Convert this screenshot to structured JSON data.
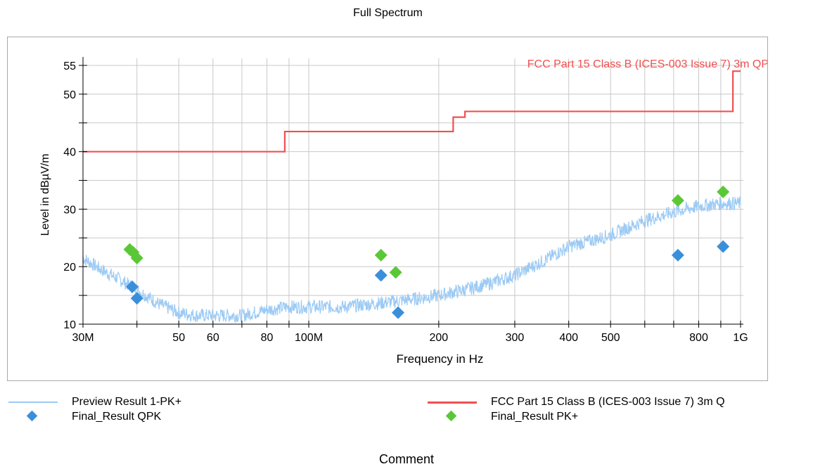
{
  "chart_data": {
    "type": "scatter",
    "title": "Full Spectrum",
    "xlabel": "Frequency in Hz",
    "ylabel": "Level in dBµV/m",
    "x_scale": "log",
    "xlim": [
      30000000,
      1000000000
    ],
    "ylim": [
      10,
      55
    ],
    "grid": true,
    "x_major_ticks": [
      {
        "value": 30000000,
        "label": "30M"
      },
      {
        "value": 50000000,
        "label": "50"
      },
      {
        "value": 60000000,
        "label": "60"
      },
      {
        "value": 80000000,
        "label": "80"
      },
      {
        "value": 100000000,
        "label": "100M"
      },
      {
        "value": 200000000,
        "label": "200"
      },
      {
        "value": 300000000,
        "label": "300"
      },
      {
        "value": 400000000,
        "label": "400"
      },
      {
        "value": 500000000,
        "label": "500"
      },
      {
        "value": 800000000,
        "label": "800"
      },
      {
        "value": 1000000000,
        "label": "1G"
      }
    ],
    "x_minor_ticks": [
      40000000,
      70000000,
      90000000,
      600000000,
      700000000,
      900000000
    ],
    "y_ticks": [
      {
        "value": 10,
        "label": "10"
      },
      {
        "value": 15,
        "label": ""
      },
      {
        "value": 20,
        "label": "20"
      },
      {
        "value": 25,
        "label": ""
      },
      {
        "value": 30,
        "label": "30"
      },
      {
        "value": 35,
        "label": ""
      },
      {
        "value": 40,
        "label": "40"
      },
      {
        "value": 45,
        "label": ""
      },
      {
        "value": 50,
        "label": "50"
      },
      {
        "value": 55,
        "label": "55"
      }
    ],
    "limit_line": {
      "name": "FCC Part 15 Class B (ICES-003 Issue 7) 3m QP",
      "color": "#f05050",
      "points": [
        [
          30000000,
          40
        ],
        [
          88000000,
          40
        ],
        [
          88000000,
          43.5
        ],
        [
          216000000,
          43.5
        ],
        [
          216000000,
          46
        ],
        [
          230000000,
          46
        ],
        [
          230000000,
          47
        ],
        [
          960000000,
          47
        ],
        [
          960000000,
          54
        ],
        [
          1000000000,
          54
        ]
      ]
    },
    "preview_series": {
      "name": "Preview Result 1-PK+",
      "color": "#9ccaf4",
      "points": [
        [
          30000000,
          21.5
        ],
        [
          33000000,
          19.5
        ],
        [
          36000000,
          18
        ],
        [
          40000000,
          16
        ],
        [
          45000000,
          13.5
        ],
        [
          50000000,
          12
        ],
        [
          55000000,
          11.5
        ],
        [
          60000000,
          11.5
        ],
        [
          70000000,
          11.5
        ],
        [
          80000000,
          12.5
        ],
        [
          90000000,
          13
        ],
        [
          100000000,
          13
        ],
        [
          120000000,
          13
        ],
        [
          140000000,
          13.5
        ],
        [
          160000000,
          14
        ],
        [
          180000000,
          14.5
        ],
        [
          200000000,
          15
        ],
        [
          230000000,
          16
        ],
        [
          260000000,
          17
        ],
        [
          300000000,
          18.5
        ],
        [
          350000000,
          21
        ],
        [
          400000000,
          23.5
        ],
        [
          450000000,
          24.5
        ],
        [
          500000000,
          25.5
        ],
        [
          600000000,
          28
        ],
        [
          700000000,
          29.5
        ],
        [
          800000000,
          30.5
        ],
        [
          900000000,
          31
        ],
        [
          1000000000,
          31
        ]
      ]
    },
    "series": [
      {
        "name": "Final_Result QPK",
        "color": "#3a8fdb",
        "points": [
          [
            39000000,
            16.5
          ],
          [
            40000000,
            14.5
          ],
          [
            147000000,
            18.5
          ],
          [
            161000000,
            12
          ],
          [
            716000000,
            22
          ],
          [
            911000000,
            23.5
          ]
        ]
      },
      {
        "name": "Final_Result PK+",
        "color": "#5ac836",
        "points": [
          [
            38500000,
            23
          ],
          [
            39200000,
            22.5
          ],
          [
            40000000,
            21.5
          ],
          [
            147000000,
            22
          ],
          [
            159000000,
            19
          ],
          [
            716000000,
            31.5
          ],
          [
            911000000,
            33
          ]
        ]
      }
    ]
  },
  "legend": {
    "items": [
      {
        "label": "Preview Result 1-PK+",
        "kind": "line",
        "color": "#9ccaf4"
      },
      {
        "label": "Final_Result QPK",
        "kind": "diamond",
        "color": "#3a8fdb"
      },
      {
        "label": "FCC Part 15 Class B (ICES-003 Issue 7) 3m Q",
        "kind": "line",
        "color": "#f05050"
      },
      {
        "label": "Final_Result PK+",
        "kind": "diamond",
        "color": "#5ac836"
      }
    ]
  },
  "comment": "Comment"
}
